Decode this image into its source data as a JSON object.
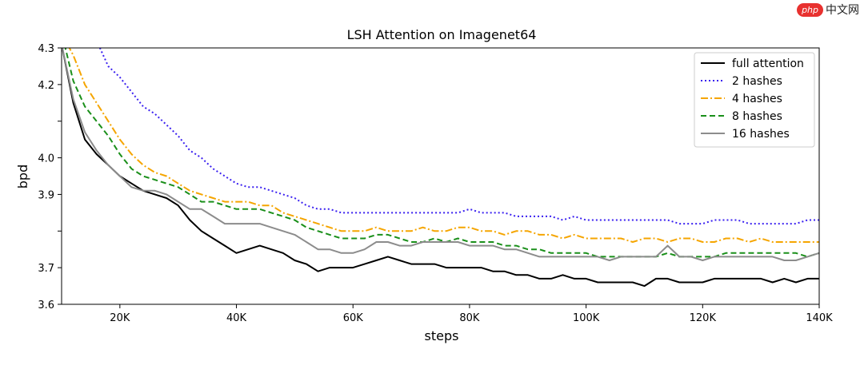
{
  "watermark": {
    "logo": "php",
    "text": "中文网"
  },
  "chart_data": {
    "type": "line",
    "title": "LSH Attention on Imagenet64",
    "xlabel": "steps",
    "ylabel": "bpd",
    "xlim": [
      10000,
      140000
    ],
    "ylim": [
      3.6,
      4.3
    ],
    "xticks": [
      20000,
      40000,
      60000,
      80000,
      100000,
      120000,
      140000
    ],
    "xtick_labels": [
      "20K",
      "40K",
      "60K",
      "80K",
      "100K",
      "120K",
      "140K"
    ],
    "yticks": [
      3.6,
      3.7,
      3.8,
      3.9,
      4.0,
      4.1,
      4.2,
      4.3
    ],
    "ytick_labels": [
      "3.6",
      "3.7",
      "",
      "3.9",
      "4.0",
      "",
      "4.2",
      "4.3"
    ],
    "grid": false,
    "legend": "top-right",
    "series": [
      {
        "name": "full attention",
        "color": "#000000",
        "dash": "solid",
        "x": [
          10000,
          12000,
          14000,
          16000,
          18000,
          20000,
          22000,
          24000,
          26000,
          28000,
          30000,
          32000,
          34000,
          36000,
          38000,
          40000,
          42000,
          44000,
          46000,
          48000,
          50000,
          52000,
          54000,
          56000,
          58000,
          60000,
          62000,
          64000,
          66000,
          68000,
          70000,
          72000,
          74000,
          76000,
          78000,
          80000,
          82000,
          84000,
          86000,
          88000,
          90000,
          92000,
          94000,
          96000,
          98000,
          100000,
          102000,
          104000,
          106000,
          108000,
          110000,
          112000,
          114000,
          116000,
          118000,
          120000,
          122000,
          124000,
          126000,
          128000,
          130000,
          132000,
          134000,
          136000,
          138000,
          140000
        ],
        "y": [
          4.31,
          4.15,
          4.05,
          4.01,
          3.98,
          3.95,
          3.93,
          3.91,
          3.9,
          3.89,
          3.87,
          3.83,
          3.8,
          3.78,
          3.76,
          3.74,
          3.75,
          3.76,
          3.75,
          3.74,
          3.72,
          3.71,
          3.69,
          3.7,
          3.7,
          3.7,
          3.71,
          3.72,
          3.73,
          3.72,
          3.71,
          3.71,
          3.71,
          3.7,
          3.7,
          3.7,
          3.7,
          3.69,
          3.69,
          3.68,
          3.68,
          3.67,
          3.67,
          3.68,
          3.67,
          3.67,
          3.66,
          3.66,
          3.66,
          3.66,
          3.65,
          3.67,
          3.67,
          3.66,
          3.66,
          3.66,
          3.67,
          3.67,
          3.67,
          3.67,
          3.67,
          3.66,
          3.67,
          3.66,
          3.67,
          3.67
        ]
      },
      {
        "name": "2 hashes",
        "color": "#3a20f0",
        "dash": "dotted",
        "x": [
          16000,
          18000,
          20000,
          22000,
          24000,
          26000,
          28000,
          30000,
          32000,
          34000,
          36000,
          38000,
          40000,
          42000,
          44000,
          46000,
          48000,
          50000,
          52000,
          54000,
          56000,
          58000,
          60000,
          62000,
          64000,
          66000,
          68000,
          70000,
          72000,
          74000,
          76000,
          78000,
          80000,
          82000,
          84000,
          86000,
          88000,
          90000,
          92000,
          94000,
          96000,
          98000,
          100000,
          102000,
          104000,
          106000,
          108000,
          110000,
          112000,
          114000,
          116000,
          118000,
          120000,
          122000,
          124000,
          126000,
          128000,
          130000,
          132000,
          134000,
          136000,
          138000,
          140000
        ],
        "y": [
          4.32,
          4.25,
          4.22,
          4.18,
          4.14,
          4.12,
          4.09,
          4.06,
          4.02,
          4.0,
          3.97,
          3.95,
          3.93,
          3.92,
          3.92,
          3.91,
          3.9,
          3.89,
          3.87,
          3.86,
          3.86,
          3.85,
          3.85,
          3.85,
          3.85,
          3.85,
          3.85,
          3.85,
          3.85,
          3.85,
          3.85,
          3.85,
          3.86,
          3.85,
          3.85,
          3.85,
          3.84,
          3.84,
          3.84,
          3.84,
          3.83,
          3.84,
          3.83,
          3.83,
          3.83,
          3.83,
          3.83,
          3.83,
          3.83,
          3.83,
          3.82,
          3.82,
          3.82,
          3.83,
          3.83,
          3.83,
          3.82,
          3.82,
          3.82,
          3.82,
          3.82,
          3.83,
          3.83
        ]
      },
      {
        "name": "4 hashes",
        "color": "#f5a500",
        "dash": "dashdot",
        "x": [
          11000,
          12000,
          14000,
          16000,
          18000,
          20000,
          22000,
          24000,
          26000,
          28000,
          30000,
          32000,
          34000,
          36000,
          38000,
          40000,
          42000,
          44000,
          46000,
          48000,
          50000,
          52000,
          54000,
          56000,
          58000,
          60000,
          62000,
          64000,
          66000,
          68000,
          70000,
          72000,
          74000,
          76000,
          78000,
          80000,
          82000,
          84000,
          86000,
          88000,
          90000,
          92000,
          94000,
          96000,
          98000,
          100000,
          102000,
          104000,
          106000,
          108000,
          110000,
          112000,
          114000,
          116000,
          118000,
          120000,
          122000,
          124000,
          126000,
          128000,
          130000,
          132000,
          134000,
          136000,
          138000,
          140000
        ],
        "y": [
          4.31,
          4.28,
          4.2,
          4.15,
          4.1,
          4.05,
          4.01,
          3.98,
          3.96,
          3.95,
          3.93,
          3.91,
          3.9,
          3.89,
          3.88,
          3.88,
          3.88,
          3.87,
          3.87,
          3.85,
          3.84,
          3.83,
          3.82,
          3.81,
          3.8,
          3.8,
          3.8,
          3.81,
          3.8,
          3.8,
          3.8,
          3.81,
          3.8,
          3.8,
          3.81,
          3.81,
          3.8,
          3.8,
          3.79,
          3.8,
          3.8,
          3.79,
          3.79,
          3.78,
          3.79,
          3.78,
          3.78,
          3.78,
          3.78,
          3.77,
          3.78,
          3.78,
          3.77,
          3.78,
          3.78,
          3.77,
          3.77,
          3.78,
          3.78,
          3.77,
          3.78,
          3.77,
          3.77,
          3.77,
          3.77,
          3.77
        ]
      },
      {
        "name": "8 hashes",
        "color": "#1a8f1a",
        "dash": "dashed",
        "x": [
          10500,
          12000,
          14000,
          16000,
          18000,
          20000,
          22000,
          24000,
          26000,
          28000,
          30000,
          32000,
          34000,
          36000,
          38000,
          40000,
          42000,
          44000,
          46000,
          48000,
          50000,
          52000,
          54000,
          56000,
          58000,
          60000,
          62000,
          64000,
          66000,
          68000,
          70000,
          72000,
          74000,
          76000,
          78000,
          80000,
          82000,
          84000,
          86000,
          88000,
          90000,
          92000,
          94000,
          96000,
          98000,
          100000,
          102000,
          104000,
          106000,
          108000,
          110000,
          112000,
          114000,
          116000,
          118000,
          120000,
          122000,
          124000,
          126000,
          128000,
          130000,
          132000,
          134000,
          136000,
          138000,
          140000
        ],
        "y": [
          4.31,
          4.21,
          4.14,
          4.1,
          4.06,
          4.01,
          3.97,
          3.95,
          3.94,
          3.93,
          3.92,
          3.9,
          3.88,
          3.88,
          3.87,
          3.86,
          3.86,
          3.86,
          3.85,
          3.84,
          3.83,
          3.81,
          3.8,
          3.79,
          3.78,
          3.78,
          3.78,
          3.79,
          3.79,
          3.78,
          3.77,
          3.77,
          3.78,
          3.77,
          3.78,
          3.77,
          3.77,
          3.77,
          3.76,
          3.76,
          3.75,
          3.75,
          3.74,
          3.74,
          3.74,
          3.74,
          3.73,
          3.73,
          3.73,
          3.73,
          3.73,
          3.73,
          3.74,
          3.73,
          3.73,
          3.73,
          3.73,
          3.74,
          3.74,
          3.74,
          3.74,
          3.74,
          3.74,
          3.74,
          3.73,
          3.74
        ]
      },
      {
        "name": "16 hashes",
        "color": "#8c8c8c",
        "dash": "solid",
        "x": [
          10000,
          12000,
          14000,
          16000,
          18000,
          20000,
          22000,
          24000,
          26000,
          28000,
          30000,
          32000,
          34000,
          36000,
          38000,
          40000,
          42000,
          44000,
          46000,
          48000,
          50000,
          52000,
          54000,
          56000,
          58000,
          60000,
          62000,
          64000,
          66000,
          68000,
          70000,
          72000,
          74000,
          76000,
          78000,
          80000,
          82000,
          84000,
          86000,
          88000,
          90000,
          92000,
          94000,
          96000,
          98000,
          100000,
          102000,
          104000,
          106000,
          108000,
          110000,
          112000,
          114000,
          116000,
          118000,
          120000,
          122000,
          124000,
          126000,
          128000,
          130000,
          132000,
          134000,
          136000,
          138000,
          140000
        ],
        "y": [
          4.31,
          4.16,
          4.07,
          4.02,
          3.98,
          3.95,
          3.92,
          3.91,
          3.91,
          3.9,
          3.88,
          3.86,
          3.86,
          3.84,
          3.82,
          3.82,
          3.82,
          3.82,
          3.81,
          3.8,
          3.79,
          3.77,
          3.75,
          3.75,
          3.74,
          3.74,
          3.75,
          3.77,
          3.77,
          3.76,
          3.76,
          3.77,
          3.77,
          3.77,
          3.77,
          3.76,
          3.76,
          3.76,
          3.75,
          3.75,
          3.74,
          3.73,
          3.73,
          3.73,
          3.73,
          3.73,
          3.73,
          3.72,
          3.73,
          3.73,
          3.73,
          3.73,
          3.76,
          3.73,
          3.73,
          3.72,
          3.73,
          3.73,
          3.73,
          3.73,
          3.73,
          3.73,
          3.72,
          3.72,
          3.73,
          3.74
        ]
      }
    ]
  }
}
